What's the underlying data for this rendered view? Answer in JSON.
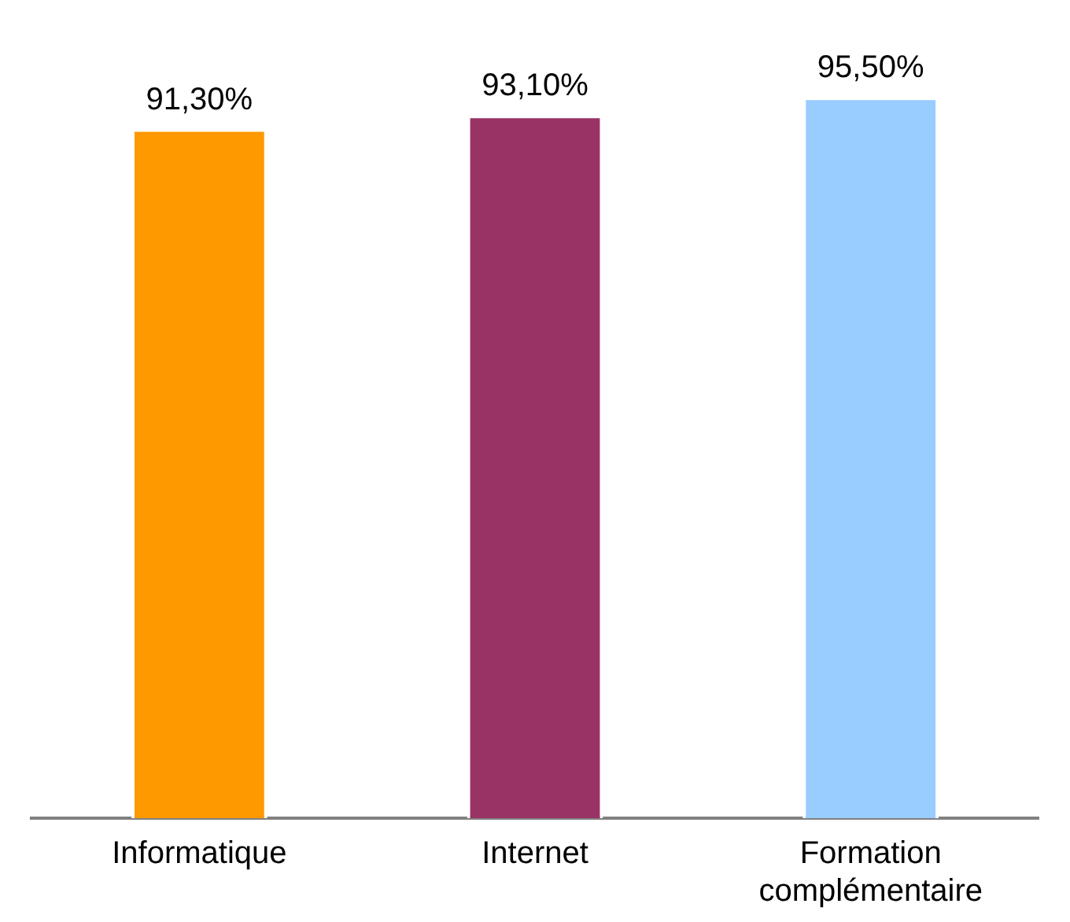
{
  "chart_data": {
    "type": "bar",
    "categories": [
      "Informatique",
      "Internet",
      "Formation complémentaire"
    ],
    "values": [
      91.3,
      93.1,
      95.5
    ],
    "colors": [
      "#ff9900",
      "#993366",
      "#99ccff"
    ],
    "value_labels": [
      "91,30%",
      "93,10%",
      "95,50%"
    ],
    "legend": false,
    "grid": false
  }
}
